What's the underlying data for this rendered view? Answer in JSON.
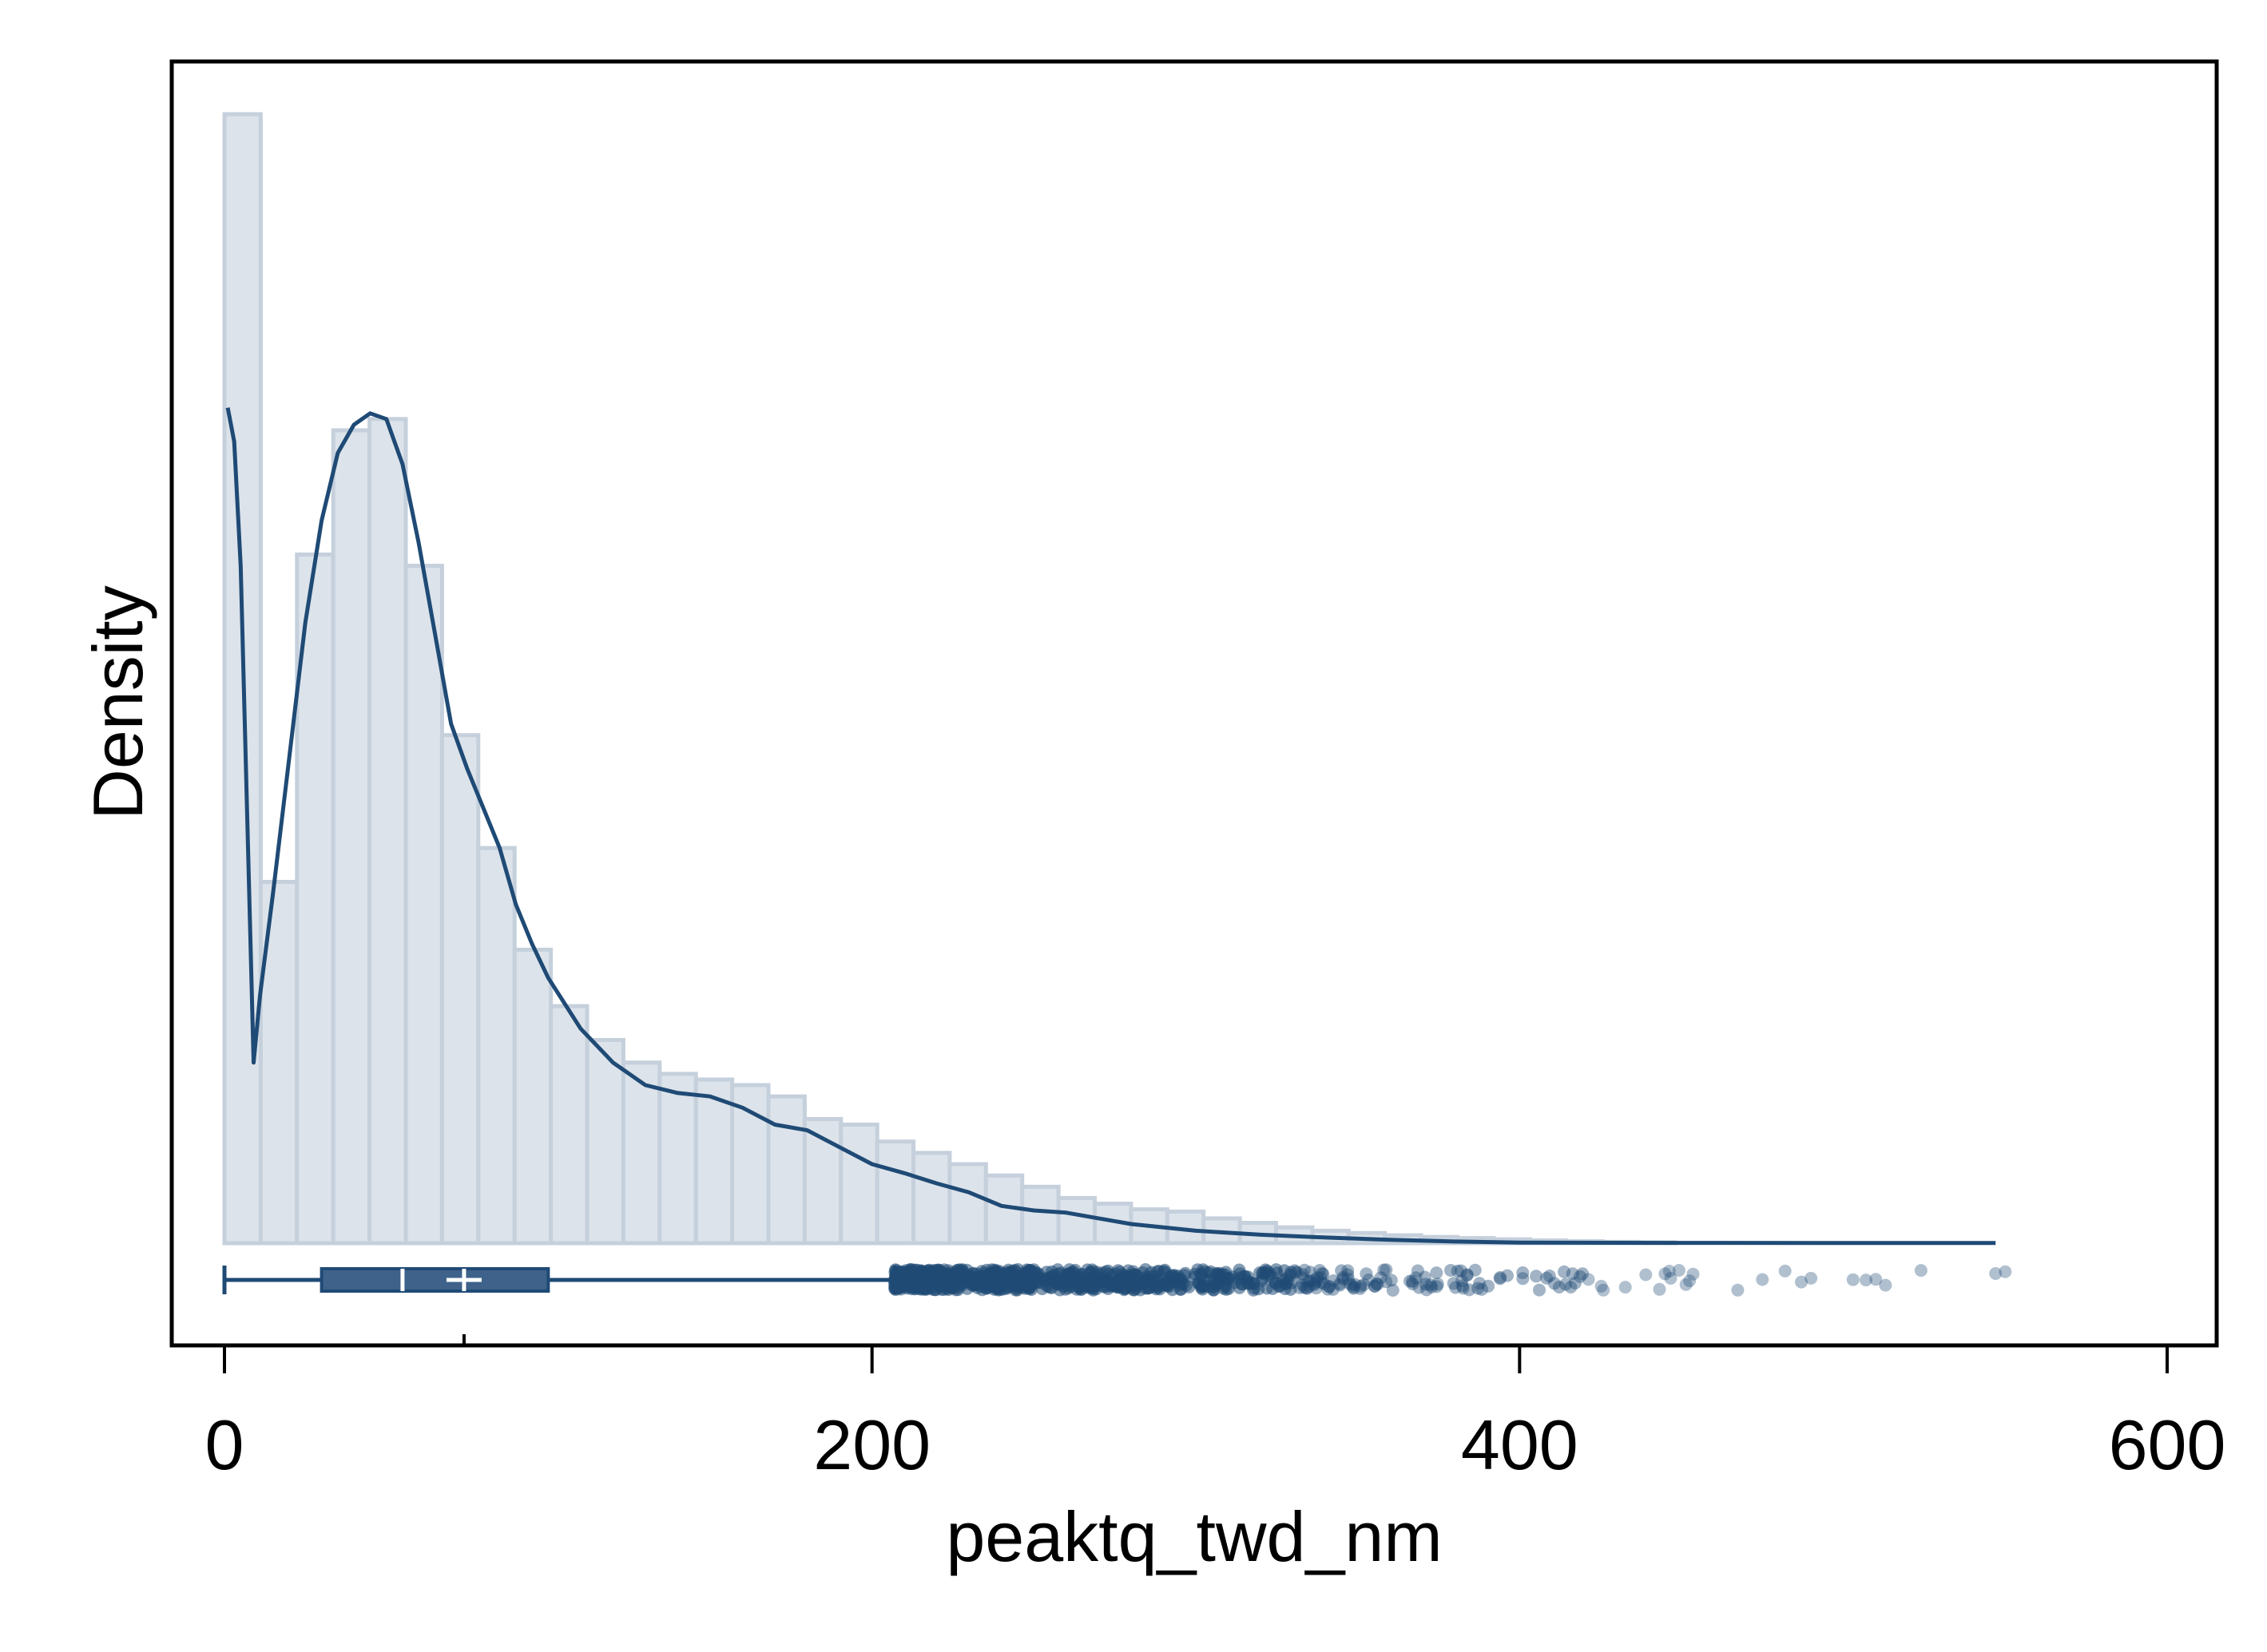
{
  "chart_data": {
    "type": "histogram",
    "xlabel": "peaktq_twd_nm",
    "ylabel": "Density",
    "xlim": [
      -20,
      615
    ],
    "x_ticks": [
      0,
      200,
      400,
      600
    ],
    "x_tick_labels": [
      "0",
      "200",
      "400",
      "600"
    ],
    "y_ticks": [],
    "grid": false,
    "legend": "none",
    "colors": {
      "bar_fill": "#dce3ea",
      "bar_edge": "#c5d0dc",
      "line": "#1f4a75",
      "box": "#3e6289",
      "point": "#1f4a75"
    },
    "histogram": {
      "bin_width": 11.2,
      "bin_start": 0,
      "densities": [
        100,
        32,
        61,
        72,
        73,
        60,
        45,
        35,
        26,
        21,
        18,
        16,
        15,
        14.5,
        14,
        13,
        11,
        10.5,
        9,
        8,
        7,
        6,
        5,
        4,
        3.5,
        3,
        2.8,
        2.2,
        1.8,
        1.4,
        1.1,
        0.9,
        0.7,
        0.55,
        0.45,
        0.35,
        0.25,
        0.18,
        0.12,
        0.08
      ]
    },
    "density_curve": {
      "x": [
        1,
        3,
        5,
        7,
        9,
        11,
        15,
        20,
        25,
        30,
        35,
        40,
        45,
        50,
        55,
        60,
        65,
        70,
        75,
        80,
        85,
        90,
        95,
        100,
        110,
        120,
        130,
        140,
        150,
        160,
        170,
        180,
        190,
        200,
        210,
        220,
        230,
        240,
        250,
        260,
        270,
        280,
        300,
        320,
        340,
        360,
        380,
        400,
        450,
        500,
        547
      ],
      "y": [
        74,
        71,
        60,
        38,
        16,
        22,
        31,
        43,
        55,
        64,
        70,
        72.5,
        73.5,
        73,
        69,
        62,
        54,
        46,
        42,
        38.5,
        35,
        30,
        26.5,
        23.5,
        19,
        16,
        14,
        13.3,
        13,
        12,
        10.5,
        10,
        8.5,
        7,
        6.2,
        5.3,
        4.5,
        3.3,
        2.9,
        2.7,
        2.2,
        1.7,
        1.1,
        0.75,
        0.5,
        0.3,
        0.15,
        0.06,
        0.03,
        0.02,
        0.02
      ],
      "ylim": [
        0,
        102
      ]
    },
    "boxplot": {
      "whisker_low": 0,
      "q1": 30,
      "median": 55,
      "mean": 74,
      "q3": 100,
      "whisker_high": 207,
      "outliers_range": [
        207,
        550
      ]
    }
  }
}
